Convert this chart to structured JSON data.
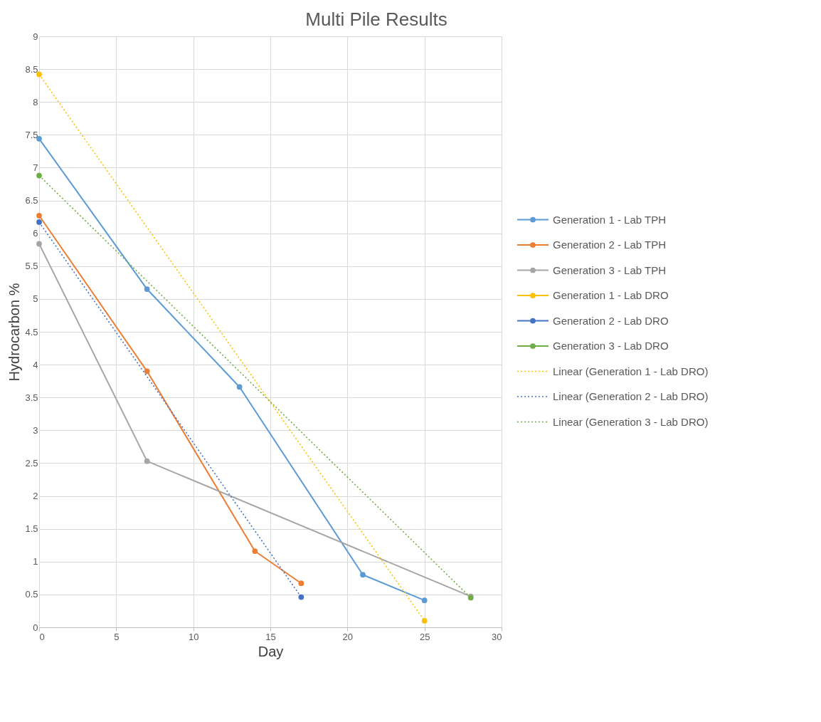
{
  "chart_data": {
    "type": "line",
    "title": "Multi Pile Results",
    "xlabel": "Day",
    "ylabel": "Hydrocarbon %",
    "xlim": [
      0,
      30
    ],
    "xticks": [
      0,
      5,
      10,
      15,
      20,
      25,
      30
    ],
    "ylim": [
      0,
      9
    ],
    "yticks": [
      0,
      0.5,
      1,
      1.5,
      2,
      2.5,
      3,
      3.5,
      4,
      4.5,
      5,
      5.5,
      6,
      6.5,
      7,
      7.5,
      8,
      8.5,
      9
    ],
    "grid": true,
    "legend": "right",
    "series": [
      {
        "name": "Generation 1 - Lab TPH",
        "type": "line",
        "marker": "circle",
        "line_style": "solid",
        "color": "#5b9bd5",
        "x": [
          0,
          7,
          13,
          21,
          25
        ],
        "values": [
          7.44,
          5.15,
          3.66,
          0.8,
          0.41
        ]
      },
      {
        "name": "Generation 2 - Lab TPH",
        "type": "line",
        "marker": "circle",
        "line_style": "solid",
        "color": "#ed7d31",
        "x": [
          0,
          7,
          14,
          17
        ],
        "values": [
          6.27,
          3.9,
          1.16,
          0.67
        ]
      },
      {
        "name": "Generation 3 - Lab TPH",
        "type": "line",
        "marker": "circle",
        "line_style": "solid",
        "color": "#a5a5a5",
        "x": [
          0,
          7,
          28
        ],
        "values": [
          5.84,
          2.53,
          0.47
        ]
      },
      {
        "name": "Generation 1 - Lab DRO",
        "type": "scatter",
        "marker": "circle",
        "color": "#ffc000",
        "x": [
          0,
          25
        ],
        "values": [
          8.42,
          0.1
        ]
      },
      {
        "name": "Generation 2 - Lab DRO",
        "type": "scatter",
        "marker": "circle",
        "color": "#4472c4",
        "x": [
          0,
          17
        ],
        "values": [
          6.17,
          0.46
        ]
      },
      {
        "name": "Generation 3 - Lab DRO",
        "type": "scatter",
        "marker": "circle",
        "color": "#70ad47",
        "x": [
          0,
          28
        ],
        "values": [
          6.88,
          0.45
        ]
      },
      {
        "name": "Linear (Generation 1 - Lab DRO)",
        "type": "line",
        "marker": "none",
        "line_style": "dotted",
        "color": "#ffc000",
        "x": [
          0,
          25
        ],
        "values": [
          8.42,
          0.1
        ]
      },
      {
        "name": "Linear (Generation 2 - Lab DRO)",
        "type": "line",
        "marker": "none",
        "line_style": "dotted",
        "color": "#4472c4",
        "x": [
          0,
          17
        ],
        "values": [
          6.17,
          0.46
        ]
      },
      {
        "name": "Linear (Generation 3 - Lab DRO)",
        "type": "line",
        "marker": "none",
        "line_style": "dotted",
        "color": "#70ad47",
        "x": [
          0,
          28
        ],
        "values": [
          6.88,
          0.45
        ]
      }
    ]
  }
}
